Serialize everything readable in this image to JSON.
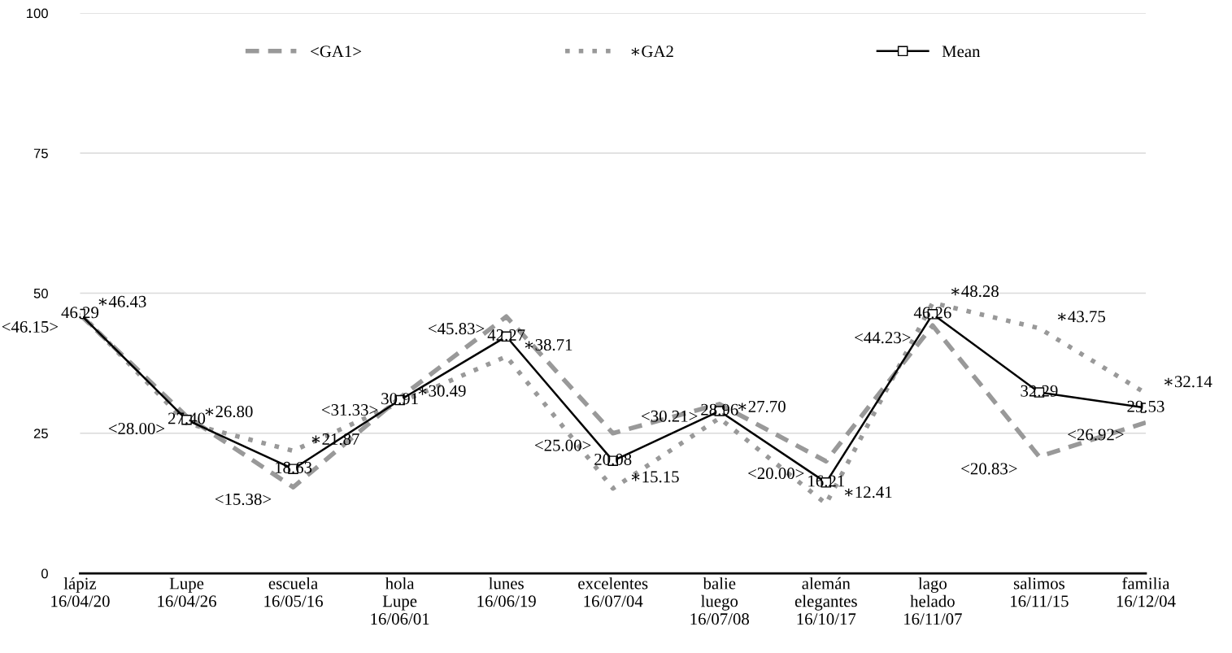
{
  "chart_data": {
    "type": "line",
    "categories": [
      "lápiz\n16/04/20",
      "Lupe\n16/04/26",
      "escuela\n16/05/16",
      "hola\nLupe\n16/06/01",
      "lunes\n16/06/19",
      "excelentes\n16/07/04",
      "balie\nluego\n16/07/08",
      "alemán\nelegantes\n16/10/17",
      "lago\nhelado\n16/11/07",
      "salimos\n16/11/15",
      "familia\n16/12/04"
    ],
    "series": [
      {
        "name": "<GA1>",
        "color": "#999999",
        "line_style": "dashed",
        "marker": "none",
        "values": [
          46.15,
          28.0,
          15.38,
          31.33,
          45.83,
          25.0,
          30.21,
          20.0,
          44.23,
          20.83,
          26.92
        ],
        "value_labels": [
          "<46.15>",
          "<28.00>",
          "<15.38>",
          "<31.33>",
          "<45.83>",
          "<25.00>",
          "<30.21>",
          "<20.00>",
          "<44.23>",
          "<20.83>",
          "<26.92>"
        ]
      },
      {
        "name": "∗GA2",
        "color": "#999999",
        "line_style": "dotted",
        "marker": "none",
        "values": [
          46.43,
          26.8,
          21.87,
          30.49,
          38.71,
          15.15,
          27.7,
          12.41,
          48.28,
          43.75,
          32.14
        ],
        "value_labels": [
          "∗46.43",
          "∗26.80",
          "∗21.87",
          "∗30.49",
          "∗38.71",
          "∗15.15",
          "∗27.70",
          "∗12.41",
          "∗48.28",
          "∗43.75",
          "∗32.14"
        ]
      },
      {
        "name": "Mean",
        "color": "#000000",
        "line_style": "solid",
        "marker": "square",
        "values": [
          46.29,
          27.4,
          18.63,
          30.91,
          42.27,
          20.08,
          28.96,
          16.21,
          46.26,
          32.29,
          29.53
        ],
        "value_labels": [
          "46.29",
          "27.40",
          "18.63",
          "30.91",
          "42.27",
          "20.08",
          "28.96",
          "16.21",
          "46.26",
          "32.29",
          "29.53"
        ]
      }
    ],
    "ylim": [
      0,
      100
    ],
    "yticks": [
      0,
      25,
      50,
      75,
      100
    ],
    "grid": "y",
    "legend": "top"
  }
}
